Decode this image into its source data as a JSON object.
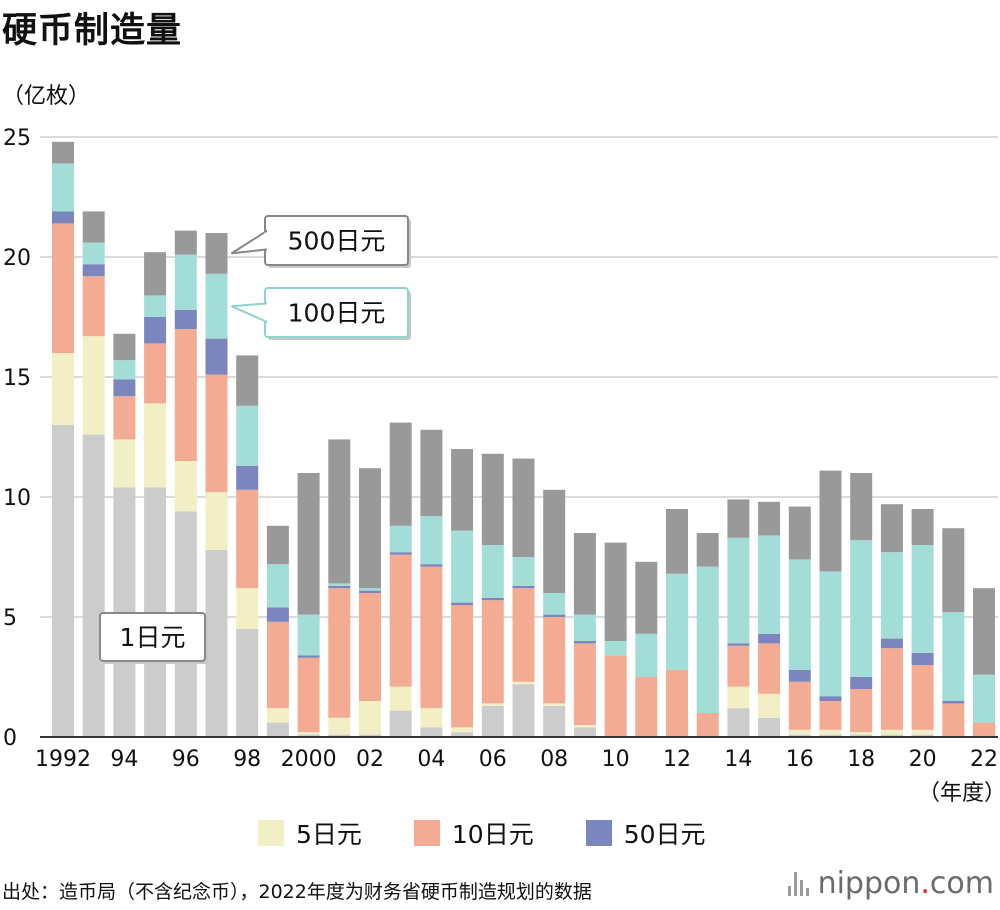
{
  "header": {
    "title": "硬币制造量",
    "unit": "（亿枚）",
    "source": "出处：造币局（不含纪念币），2022年度为财务省硬币制造规划的数据",
    "brand_name": "nippon",
    "brand_dot": ".",
    "brand_suffix": "com"
  },
  "colors": {
    "1日元": "#cccccc",
    "5日元": "#f2efc5",
    "10日元": "#f3ab93",
    "50日元": "#7a86bd",
    "100日元": "#a3ddd7",
    "500日元": "#999999",
    "grid": "#cfcfcf",
    "axis": "#333333"
  },
  "chart_data": {
    "type": "bar",
    "stacked": true,
    "title": "硬币制造量",
    "ylabel": "（亿枚）",
    "xlabel": "（年度）",
    "ylim": [
      0,
      25
    ],
    "yticks": [
      0,
      5,
      10,
      15,
      20,
      25
    ],
    "grid": true,
    "legend": "bottom",
    "categories": [
      "1992",
      "1993",
      "1994",
      "1995",
      "1996",
      "1997",
      "1998",
      "1999",
      "2000",
      "2001",
      "2002",
      "2003",
      "2004",
      "2005",
      "2006",
      "2007",
      "2008",
      "2009",
      "2010",
      "2011",
      "2012",
      "2013",
      "2014",
      "2015",
      "2016",
      "2017",
      "2018",
      "2019",
      "2020",
      "2021",
      "2022"
    ],
    "xtick_labels": [
      "1992",
      "",
      "94",
      "",
      "96",
      "",
      "98",
      "",
      "2000",
      "",
      "02",
      "",
      "04",
      "",
      "06",
      "",
      "08",
      "",
      "10",
      "",
      "12",
      "",
      "14",
      "",
      "16",
      "",
      "18",
      "",
      "20",
      "",
      "22"
    ],
    "series": [
      {
        "name": "1日元",
        "values": [
          13.0,
          12.6,
          10.4,
          10.4,
          9.4,
          7.8,
          4.5,
          0.6,
          0.1,
          0.1,
          0.1,
          1.1,
          0.4,
          0.2,
          1.3,
          2.2,
          1.3,
          0.4,
          0.0,
          0.0,
          0.0,
          0.0,
          1.2,
          0.8,
          0.1,
          0.1,
          0.1,
          0.1,
          0.1,
          0.0,
          0.0
        ]
      },
      {
        "name": "5日元",
        "values": [
          3.0,
          4.1,
          2.0,
          3.5,
          2.1,
          2.4,
          1.7,
          0.6,
          0.1,
          0.7,
          1.4,
          1.0,
          0.8,
          0.2,
          0.1,
          0.1,
          0.1,
          0.1,
          0.0,
          0.0,
          0.0,
          0.0,
          0.9,
          1.0,
          0.2,
          0.2,
          0.1,
          0.2,
          0.2,
          0.0,
          0.0
        ]
      },
      {
        "name": "10日元",
        "values": [
          5.4,
          2.5,
          1.8,
          2.5,
          5.5,
          4.9,
          4.1,
          3.6,
          3.1,
          5.4,
          4.5,
          5.5,
          5.9,
          5.1,
          4.3,
          3.9,
          3.6,
          3.4,
          3.4,
          2.5,
          2.8,
          1.0,
          1.7,
          2.1,
          2.0,
          1.2,
          1.8,
          3.4,
          2.7,
          1.4,
          0.6
        ]
      },
      {
        "name": "50日元",
        "values": [
          0.5,
          0.5,
          0.7,
          1.1,
          0.8,
          1.5,
          1.0,
          0.6,
          0.1,
          0.1,
          0.1,
          0.1,
          0.1,
          0.1,
          0.1,
          0.1,
          0.1,
          0.1,
          0.0,
          0.0,
          0.0,
          0.0,
          0.1,
          0.4,
          0.5,
          0.2,
          0.5,
          0.4,
          0.5,
          0.1,
          0.0
        ]
      },
      {
        "name": "100日元",
        "values": [
          2.0,
          0.9,
          0.8,
          0.9,
          2.3,
          2.7,
          2.5,
          1.8,
          1.7,
          0.1,
          0.1,
          1.1,
          2.0,
          3.0,
          2.2,
          1.2,
          0.9,
          1.1,
          0.6,
          1.8,
          4.0,
          6.1,
          4.4,
          4.1,
          4.6,
          5.2,
          5.7,
          3.6,
          4.5,
          3.7,
          2.0
        ]
      },
      {
        "name": "500日元",
        "values": [
          0.9,
          1.3,
          1.1,
          1.8,
          1.0,
          1.7,
          2.1,
          1.6,
          5.9,
          6.0,
          5.0,
          4.3,
          3.6,
          3.4,
          3.8,
          4.1,
          4.3,
          3.4,
          4.1,
          3.0,
          2.7,
          1.4,
          1.6,
          1.4,
          2.2,
          4.2,
          2.8,
          2.0,
          1.5,
          3.5,
          3.6
        ]
      }
    ],
    "annotations": [
      {
        "text": "500日元",
        "series": "500日元",
        "category": "1997"
      },
      {
        "text": "100日元",
        "series": "100日元",
        "category": "1997"
      },
      {
        "text": "1日元",
        "series": "1日元",
        "category": "1996"
      }
    ],
    "legend_entries": [
      "5日元",
      "10日元",
      "50日元"
    ]
  }
}
